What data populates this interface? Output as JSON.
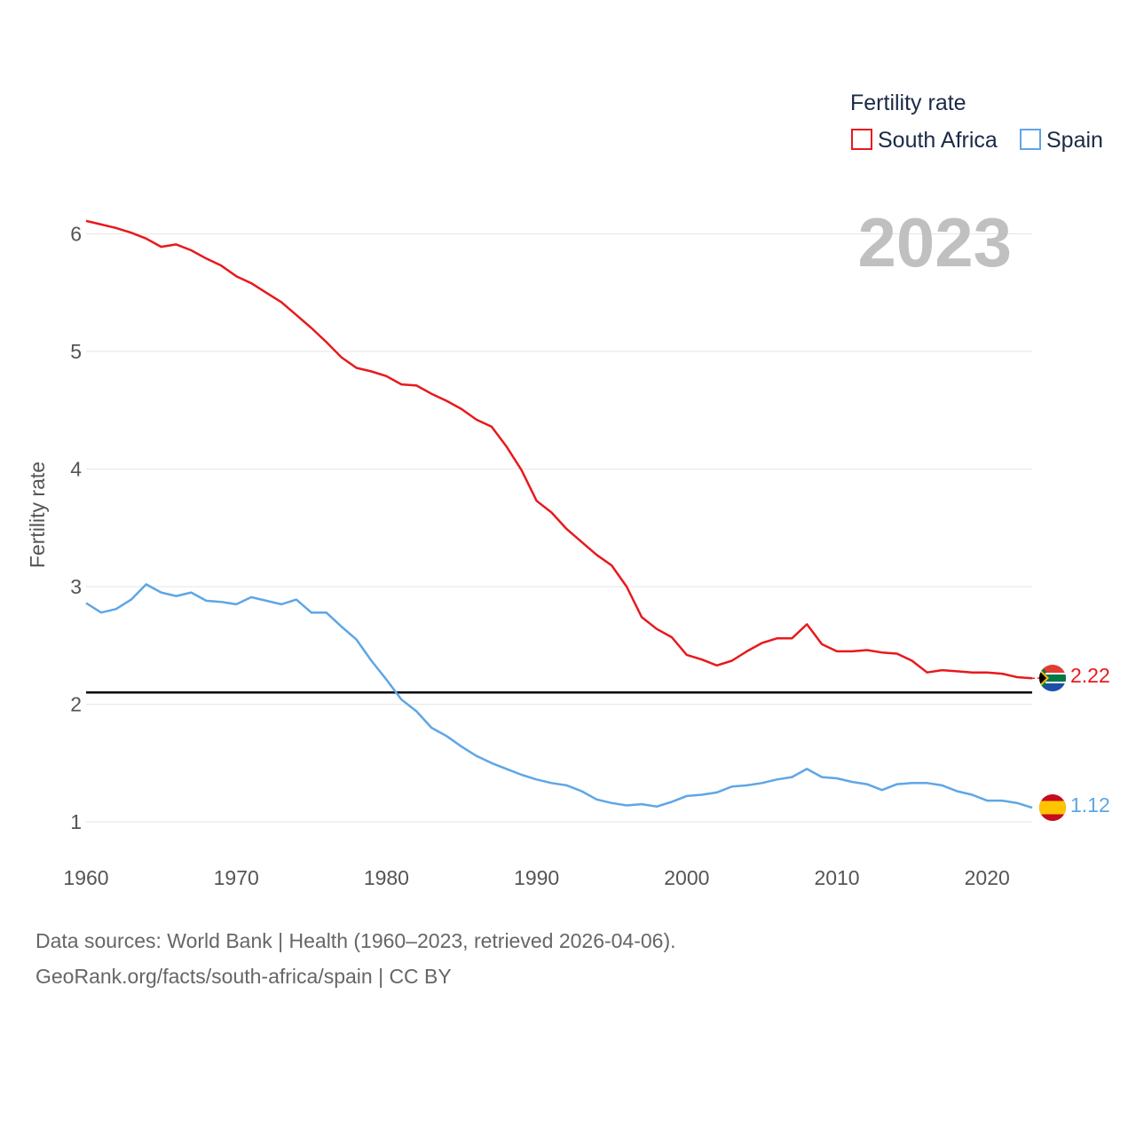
{
  "legend": {
    "title": "Fertility rate"
  },
  "year_display": "2023",
  "ylabel": "Fertility rate",
  "footer": {
    "line1": "Data sources: World Bank | Health (1960–2023, retrieved 2026-04-06).",
    "line2": "GeoRank.org/facts/south-africa/spain | CC BY"
  },
  "colors": {
    "south_africa": "#e8191c",
    "spain": "#5ea6e6",
    "replacement": "#000000",
    "grid": "#e6e6e6"
  },
  "chart_data": {
    "type": "line",
    "title": "Fertility rate",
    "xlabel": "",
    "ylabel": "Fertility rate",
    "xlim": [
      1960,
      2023
    ],
    "ylim": [
      0.5,
      6.5
    ],
    "x_ticks": [
      1960,
      1970,
      1980,
      1990,
      2000,
      2010,
      2020
    ],
    "y_ticks": [
      1,
      2,
      3,
      4,
      5,
      6
    ],
    "reference_line": {
      "y": 2.1,
      "label": ""
    },
    "x": [
      1960,
      1961,
      1962,
      1963,
      1964,
      1965,
      1966,
      1967,
      1968,
      1969,
      1970,
      1971,
      1972,
      1973,
      1974,
      1975,
      1976,
      1977,
      1978,
      1979,
      1980,
      1981,
      1982,
      1983,
      1984,
      1985,
      1986,
      1987,
      1988,
      1989,
      1990,
      1991,
      1992,
      1993,
      1994,
      1995,
      1996,
      1997,
      1998,
      1999,
      2000,
      2001,
      2002,
      2003,
      2004,
      2005,
      2006,
      2007,
      2008,
      2009,
      2010,
      2011,
      2012,
      2013,
      2014,
      2015,
      2016,
      2017,
      2018,
      2019,
      2020,
      2021,
      2022,
      2023
    ],
    "series": [
      {
        "name": "South Africa",
        "color": "#e8191c",
        "end_label": "2.22",
        "flag": "south-africa",
        "values": [
          6.11,
          6.08,
          6.05,
          6.01,
          5.96,
          5.89,
          5.91,
          5.86,
          5.79,
          5.73,
          5.64,
          5.58,
          5.5,
          5.42,
          5.31,
          5.2,
          5.08,
          4.95,
          4.86,
          4.83,
          4.79,
          4.72,
          4.71,
          4.64,
          4.58,
          4.51,
          4.42,
          4.36,
          4.19,
          3.99,
          3.73,
          3.63,
          3.49,
          3.38,
          3.27,
          3.18,
          3.0,
          2.74,
          2.64,
          2.57,
          2.42,
          2.38,
          2.33,
          2.37,
          2.45,
          2.52,
          2.56,
          2.56,
          2.68,
          2.51,
          2.45,
          2.45,
          2.46,
          2.44,
          2.43,
          2.37,
          2.27,
          2.29,
          2.28,
          2.27,
          2.27,
          2.26,
          2.23,
          2.22
        ]
      },
      {
        "name": "Spain",
        "color": "#5ea6e6",
        "end_label": "1.12",
        "flag": "spain",
        "values": [
          2.86,
          2.78,
          2.81,
          2.89,
          3.02,
          2.95,
          2.92,
          2.95,
          2.88,
          2.87,
          2.85,
          2.91,
          2.88,
          2.85,
          2.89,
          2.78,
          2.78,
          2.66,
          2.55,
          2.37,
          2.21,
          2.04,
          1.94,
          1.8,
          1.73,
          1.64,
          1.56,
          1.5,
          1.45,
          1.4,
          1.36,
          1.33,
          1.31,
          1.26,
          1.19,
          1.16,
          1.14,
          1.15,
          1.13,
          1.17,
          1.22,
          1.23,
          1.25,
          1.3,
          1.31,
          1.33,
          1.36,
          1.38,
          1.45,
          1.38,
          1.37,
          1.34,
          1.32,
          1.27,
          1.32,
          1.33,
          1.33,
          1.31,
          1.26,
          1.23,
          1.18,
          1.18,
          1.16,
          1.12
        ]
      }
    ]
  }
}
